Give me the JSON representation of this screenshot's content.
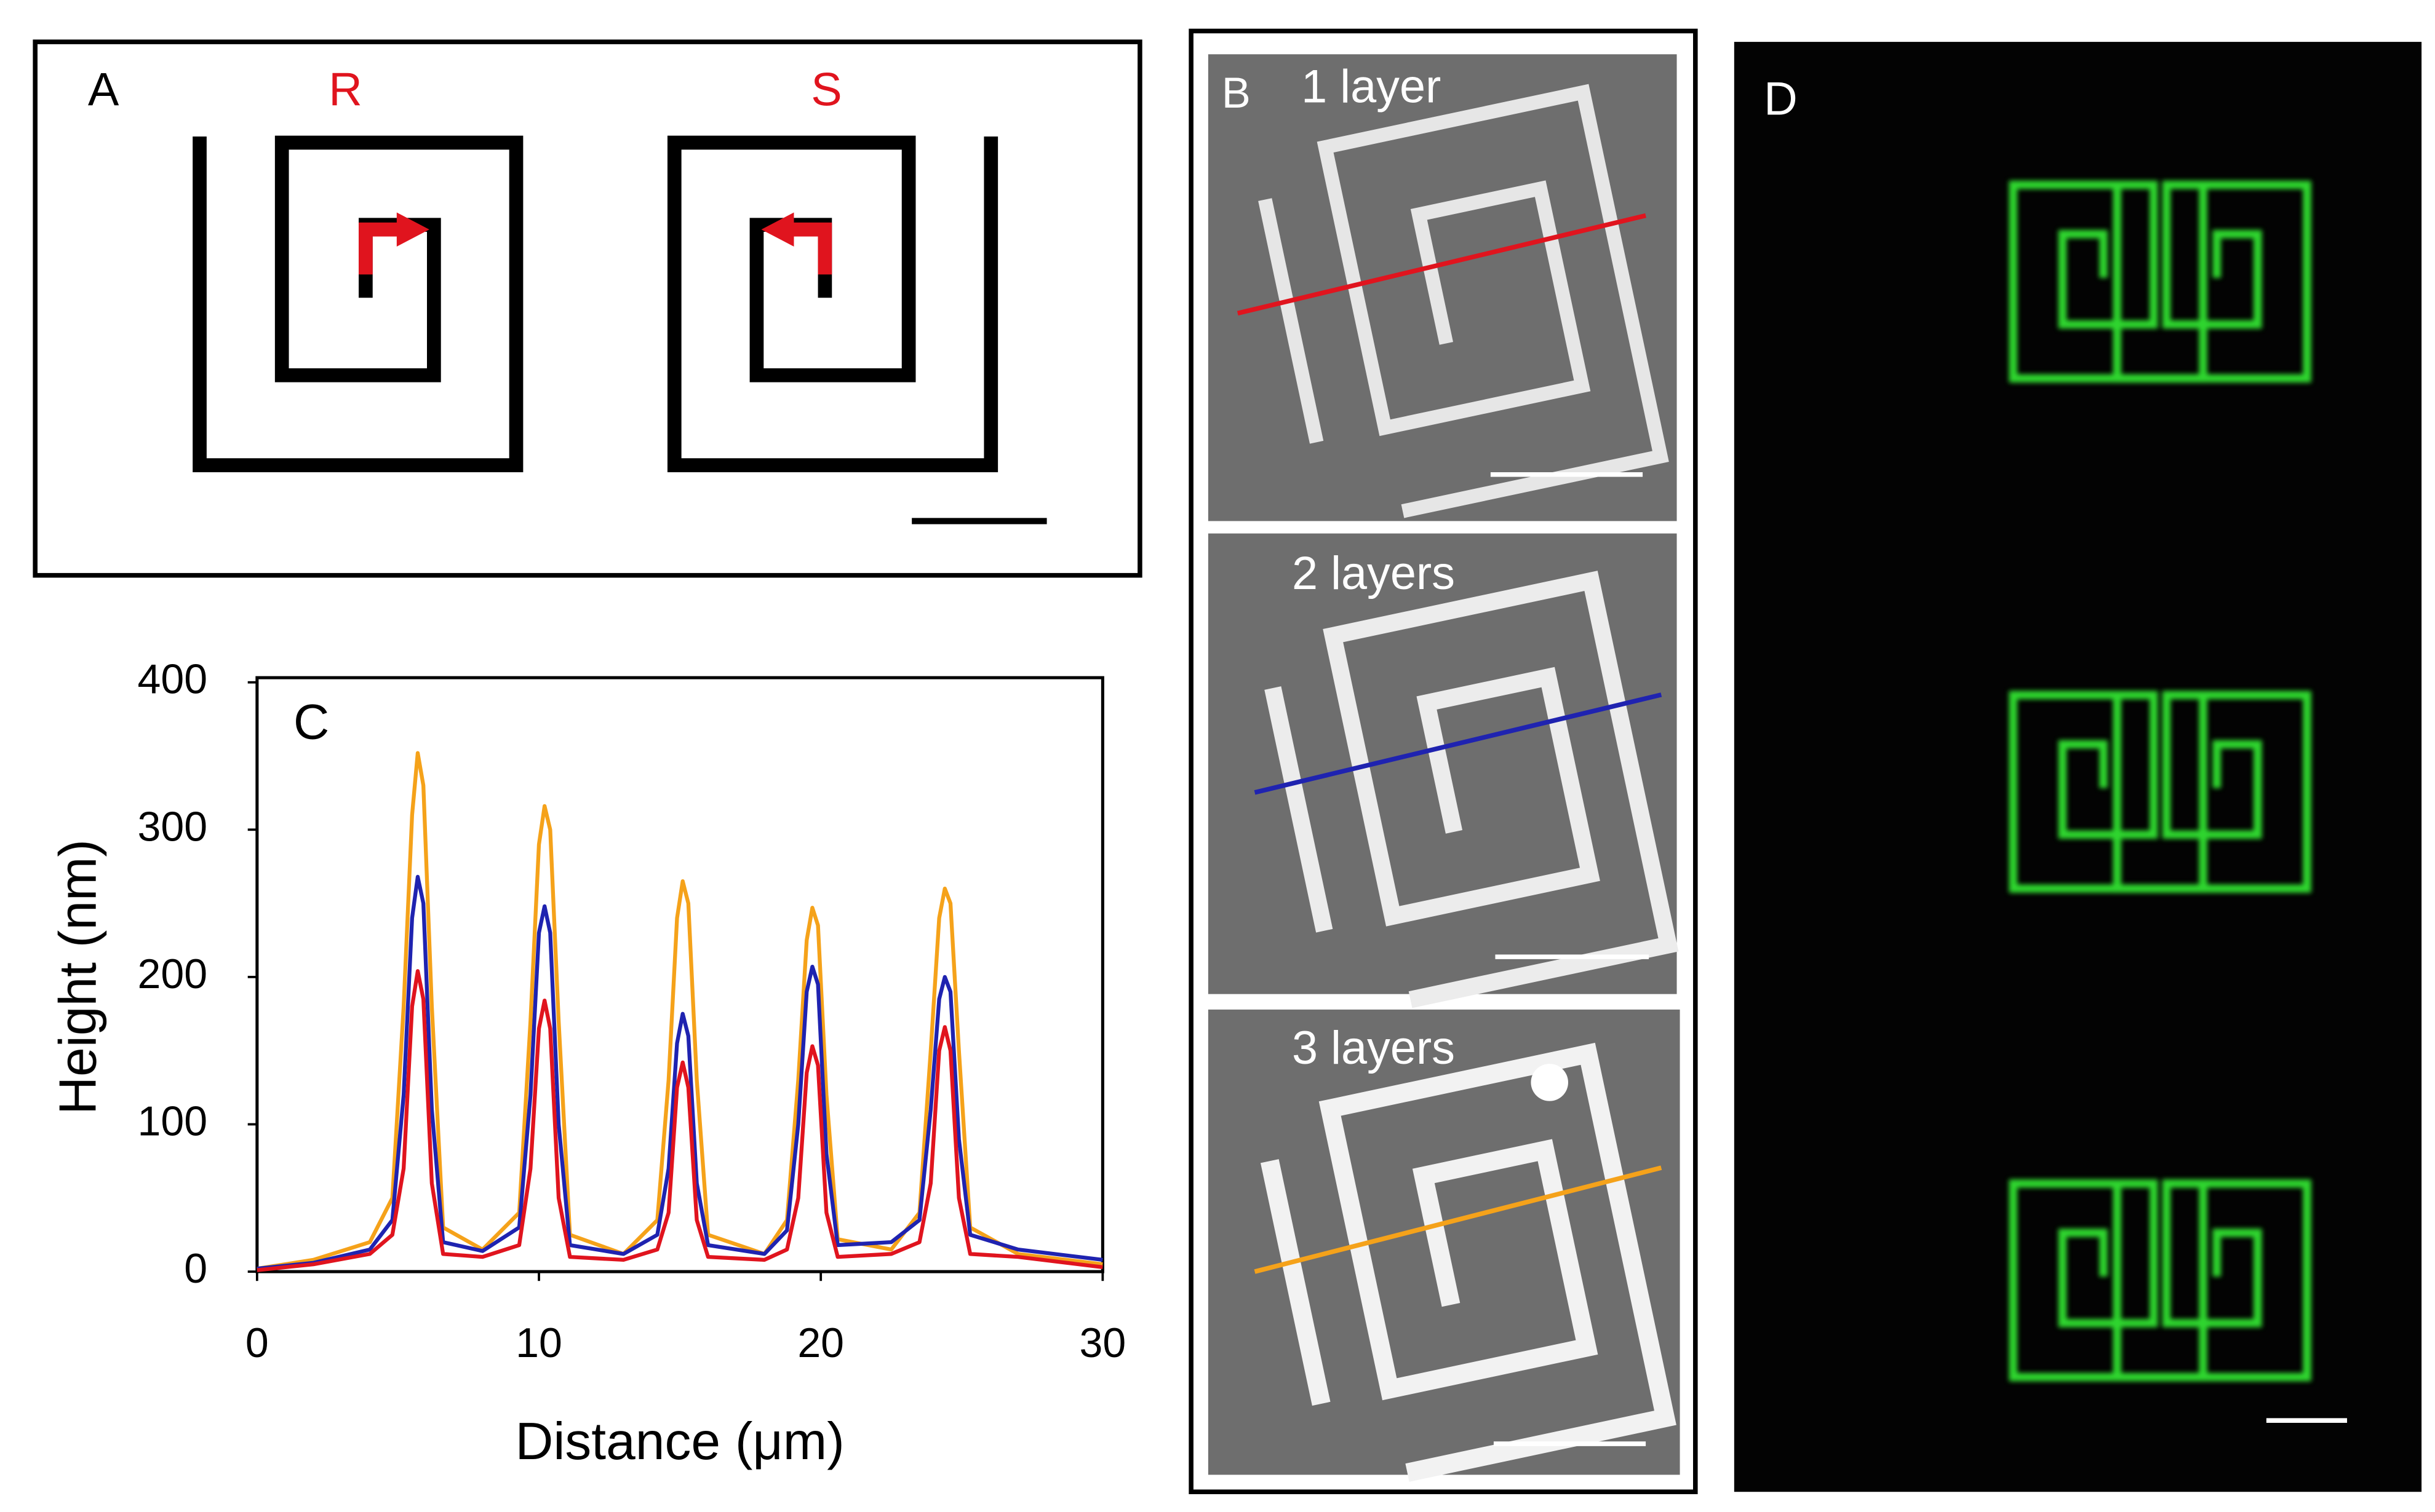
{
  "panels": {
    "A": {
      "label": "A",
      "labels": [
        "R",
        "S"
      ]
    },
    "B": {
      "label": "B",
      "captions": [
        "1 layer",
        "2 layers",
        "3 layers"
      ]
    },
    "C": {
      "label": "C"
    },
    "D": {
      "label": "D"
    }
  },
  "chart_data": {
    "type": "line",
    "x_label": "Distance (μm)",
    "y_label": "Height (nm)",
    "xlim": [
      0,
      30
    ],
    "xticks": [
      0,
      10,
      20,
      30
    ],
    "ylim": [
      0,
      400
    ],
    "yticks": [
      0,
      100,
      200,
      300,
      400
    ],
    "x": [
      0,
      2,
      4,
      4.8,
      5.2,
      5.5,
      5.7,
      5.9,
      6.2,
      6.6,
      8,
      9.3,
      9.7,
      10.0,
      10.2,
      10.4,
      10.7,
      11.1,
      13,
      14.2,
      14.6,
      14.9,
      15.1,
      15.3,
      15.6,
      16.0,
      18,
      18.8,
      19.2,
      19.5,
      19.7,
      19.9,
      20.2,
      20.6,
      22.5,
      23.5,
      23.9,
      24.2,
      24.4,
      24.6,
      24.9,
      25.3,
      27,
      30
    ],
    "series": [
      {
        "color": "#f5a21a",
        "values": [
          2,
          8,
          20,
          50,
          180,
          310,
          352,
          330,
          180,
          30,
          15,
          40,
          170,
          290,
          316,
          300,
          170,
          25,
          12,
          35,
          130,
          240,
          265,
          250,
          130,
          25,
          12,
          35,
          130,
          225,
          247,
          235,
          120,
          22,
          15,
          40,
          150,
          240,
          260,
          250,
          150,
          30,
          12,
          5
        ]
      },
      {
        "color": "#1f23b0",
        "values": [
          2,
          6,
          15,
          35,
          120,
          240,
          268,
          250,
          110,
          20,
          14,
          30,
          120,
          230,
          248,
          230,
          100,
          18,
          12,
          25,
          70,
          155,
          175,
          160,
          60,
          18,
          12,
          28,
          100,
          190,
          207,
          195,
          80,
          18,
          20,
          35,
          110,
          185,
          200,
          190,
          90,
          25,
          15,
          8
        ]
      },
      {
        "color": "#e0141e",
        "values": [
          1,
          5,
          12,
          25,
          70,
          180,
          204,
          185,
          60,
          12,
          10,
          18,
          70,
          165,
          184,
          165,
          50,
          10,
          8,
          15,
          40,
          125,
          142,
          125,
          35,
          10,
          8,
          15,
          50,
          135,
          153,
          140,
          40,
          10,
          12,
          20,
          60,
          150,
          166,
          150,
          50,
          12,
          10,
          3
        ]
      }
    ]
  }
}
